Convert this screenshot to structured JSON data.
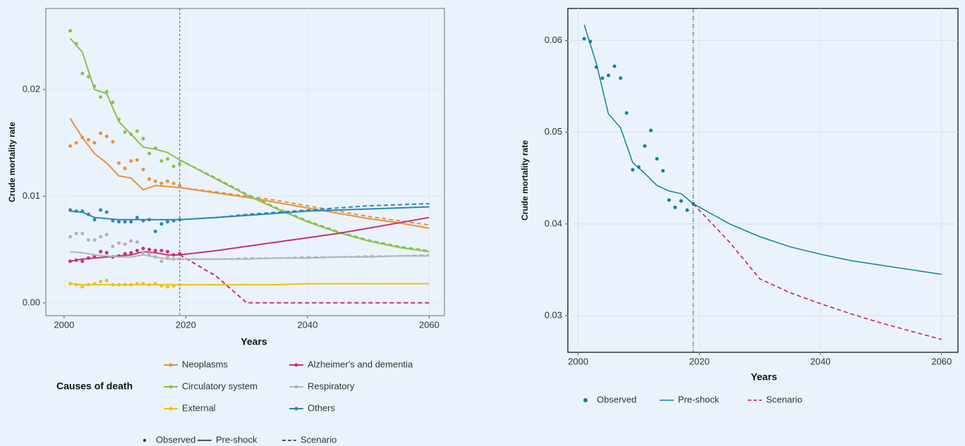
{
  "chart_data": [
    {
      "type": "line",
      "x_label": "Years",
      "y_label": "Crude mortality rate",
      "xlim": [
        1997,
        2062.5
      ],
      "ylim": [
        -0.0012,
        0.0276
      ],
      "xticks": [
        2000,
        2020,
        2040,
        2060
      ],
      "yticks": [
        {
          "value": 0,
          "label": "0.00"
        },
        0.01,
        0.02
      ],
      "grid": true,
      "vline": 2019,
      "legend_title": "Causes of death",
      "style_legend": [
        "Observed",
        "Pre-shock",
        "Scenario"
      ],
      "x_observed": [
        2001,
        2002,
        2003,
        2004,
        2005,
        2006,
        2007,
        2008,
        2009,
        2010,
        2011,
        2012,
        2013,
        2014,
        2015,
        2016,
        2017,
        2018,
        2019
      ],
      "x": [
        2001,
        2003,
        2005,
        2007,
        2009,
        2011,
        2013,
        2015,
        2017,
        2019,
        2025,
        2030,
        2035,
        2040,
        2045,
        2050,
        2055,
        2060
      ],
      "series": [
        {
          "name": "Neoplasms",
          "color": "#e8913a",
          "observed": [
            0.0147,
            0.015,
            0.0155,
            0.0153,
            0.015,
            0.0159,
            0.0156,
            0.0151,
            0.0131,
            0.0126,
            0.0133,
            0.0134,
            0.0125,
            0.0116,
            0.0114,
            0.0112,
            0.0114,
            0.0112,
            0.011
          ],
          "pre_shock": [
            0.0173,
            0.0155,
            0.014,
            0.0131,
            0.0119,
            0.0117,
            0.0106,
            0.011,
            0.0109,
            0.0108,
            0.0103,
            0.0099,
            0.0094,
            0.0089,
            0.0084,
            0.0079,
            0.0075,
            0.007
          ],
          "scenario": [
            null,
            null,
            null,
            null,
            null,
            null,
            null,
            null,
            null,
            0.0108,
            0.0104,
            0.01,
            0.0096,
            0.0091,
            0.0086,
            0.0081,
            0.0077,
            0.0073
          ]
        },
        {
          "name": "Circulatory system",
          "color": "#8cc04b",
          "observed": [
            0.0255,
            0.0243,
            0.0215,
            0.0212,
            0.0203,
            0.0193,
            0.0198,
            0.0188,
            0.0172,
            0.016,
            0.0158,
            0.0161,
            0.0154,
            0.014,
            0.0145,
            0.0133,
            0.0135,
            0.0128,
            0.013
          ],
          "pre_shock": [
            0.0248,
            0.0235,
            0.02,
            0.0196,
            0.017,
            0.0158,
            0.0146,
            0.0144,
            0.0141,
            0.0134,
            0.0116,
            0.0101,
            0.0088,
            0.0076,
            0.0066,
            0.0058,
            0.0052,
            0.0048
          ],
          "scenario": [
            null,
            null,
            null,
            null,
            null,
            null,
            null,
            null,
            null,
            0.0134,
            0.0117,
            0.0102,
            0.0089,
            0.0077,
            0.0067,
            0.0059,
            0.0053,
            0.0049
          ]
        },
        {
          "name": "External",
          "color": "#f0c020",
          "observed": [
            0.0018,
            0.0017,
            0.0015,
            0.0017,
            0.0018,
            0.002,
            0.0021,
            0.0017,
            0.0017,
            0.0017,
            0.0017,
            0.0018,
            0.0018,
            0.0017,
            0.0018,
            0.0016,
            0.0015,
            0.0016,
            0.0017
          ],
          "pre_shock": [
            0.0018,
            0.0017,
            0.0017,
            0.0017,
            0.0017,
            0.0017,
            0.0017,
            0.0017,
            0.0017,
            0.0017,
            0.0017,
            0.0017,
            0.0017,
            0.0018,
            0.0018,
            0.0018,
            0.0018,
            0.0018
          ],
          "scenario": [
            null,
            null,
            null,
            null,
            null,
            null,
            null,
            null,
            null,
            0.0017,
            0.0017,
            0.0017,
            0.0017,
            0.0018,
            0.0018,
            0.0018,
            0.0018,
            0.0018
          ]
        },
        {
          "name": "Alzheimer's and dementia",
          "color": "#c8307a",
          "observed": [
            0.0039,
            0.004,
            0.0039,
            0.0042,
            0.0044,
            0.0048,
            0.0047,
            0.0043,
            0.0044,
            0.0046,
            0.0047,
            0.0049,
            0.0051,
            0.005,
            0.0049,
            0.0049,
            0.0048,
            0.0045,
            0.0046
          ],
          "pre_shock": [
            0.0039,
            0.0041,
            0.0042,
            0.0043,
            0.0044,
            0.0045,
            0.0048,
            0.0047,
            0.0045,
            0.0045,
            0.0049,
            0.0053,
            0.0057,
            0.0061,
            0.0065,
            0.007,
            0.0075,
            0.008
          ],
          "scenario": [
            null,
            null,
            null,
            null,
            null,
            null,
            null,
            null,
            null,
            0.0045,
            0.0025,
            0,
            0,
            0,
            0,
            0,
            0,
            0
          ]
        },
        {
          "name": "Respiratory",
          "color": "#b4b4b4",
          "observed": [
            0.0062,
            0.0065,
            0.0065,
            0.0059,
            0.0059,
            0.0062,
            0.0064,
            0.0053,
            0.0056,
            0.0055,
            0.0058,
            0.0057,
            0.0047,
            0.0046,
            0.0043,
            0.0039,
            0.0043,
            0.0041,
            0.0041
          ],
          "pre_shock": [
            0.0048,
            0.0047,
            0.0045,
            0.0044,
            0.0043,
            0.0043,
            0.0045,
            0.0043,
            0.0041,
            0.0041,
            0.0041,
            0.0041,
            0.0042,
            0.0042,
            0.0043,
            0.0043,
            0.0044,
            0.0044
          ],
          "scenario": [
            null,
            null,
            null,
            null,
            null,
            null,
            null,
            null,
            null,
            0.0041,
            0.0041,
            0.0042,
            0.0042,
            0.0043,
            0.0043,
            0.0044,
            0.0044,
            0.0045
          ]
        },
        {
          "name": "Others",
          "color": "#2f86b4",
          "observed": [
            0.0087,
            0.0086,
            0.0086,
            0.0083,
            0.0078,
            0.0087,
            0.0085,
            0.0077,
            0.0076,
            0.0076,
            0.0076,
            0.008,
            0.0077,
            0.0078,
            0.0067,
            0.0074,
            0.0076,
            0.0077,
            0.0078
          ],
          "pre_shock": [
            0.0086,
            0.0085,
            0.008,
            0.0079,
            0.0078,
            0.0078,
            0.0078,
            0.0078,
            0.0078,
            0.0078,
            0.008,
            0.0082,
            0.0084,
            0.0086,
            0.0087,
            0.0088,
            0.0089,
            0.009
          ],
          "scenario": [
            null,
            null,
            null,
            null,
            null,
            null,
            null,
            null,
            null,
            0.0078,
            0.008,
            0.0083,
            0.0085,
            0.0087,
            0.0089,
            0.0091,
            0.0092,
            0.0093
          ]
        }
      ]
    },
    {
      "type": "line",
      "x_label": "Years",
      "y_label": "Crude mortality rate",
      "xlim": [
        1998.3,
        2062.7
      ],
      "ylim": [
        0.026,
        0.0635
      ],
      "xticks": [
        2000,
        2020,
        2040,
        2060
      ],
      "yticks": [
        0.03,
        0.04,
        0.05,
        0.06
      ],
      "grid": true,
      "vline": 2019,
      "style_legend": [
        "Observed",
        "Pre-shock",
        "Scenario"
      ],
      "x_observed": [
        2001,
        2002,
        2003,
        2004,
        2005,
        2006,
        2007,
        2008,
        2009,
        2010,
        2011,
        2012,
        2013,
        2014,
        2015,
        2016,
        2017,
        2018,
        2019
      ],
      "x": [
        2001,
        2003,
        2005,
        2007,
        2009,
        2011,
        2013,
        2015,
        2017,
        2019,
        2025,
        2030,
        2035,
        2040,
        2045,
        2050,
        2055,
        2060
      ],
      "series": [
        {
          "color": "#177e99",
          "scenario_color": "#c2185b",
          "observed": [
            0.0602,
            0.0599,
            0.0571,
            0.0559,
            0.0562,
            0.0572,
            0.0559,
            0.0521,
            0.0459,
            0.0462,
            0.0485,
            0.0502,
            0.0471,
            0.0458,
            0.0426,
            0.0418,
            0.0425,
            0.0415,
            0.0422
          ],
          "pre_shock": [
            0.0617,
            0.0575,
            0.052,
            0.0505,
            0.0467,
            0.0455,
            0.0442,
            0.0436,
            0.0433,
            0.0422,
            0.04,
            0.0386,
            0.0375,
            0.0367,
            0.036,
            0.0355,
            0.035,
            0.0345
          ],
          "scenario": [
            null,
            null,
            null,
            null,
            null,
            null,
            null,
            null,
            null,
            0.0422,
            0.038,
            0.034,
            0.0325,
            0.0313,
            0.0302,
            0.0292,
            0.0283,
            0.0274
          ]
        }
      ]
    }
  ]
}
